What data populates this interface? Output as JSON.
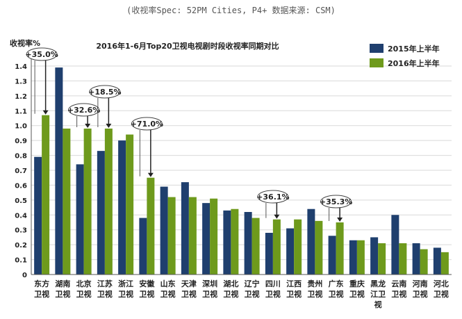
{
  "caption": "(收视率Spec: 52PM Cities, P4+ 数据来源: CSM)",
  "chart_data": {
    "type": "bar",
    "title": "2016年1-6月Top20卫视电视剧时段收视率同期对比",
    "ylabel": "收视率%",
    "xlabel": "",
    "ylim": [
      0,
      1.4
    ],
    "yticks": [
      0,
      0.1,
      0.2,
      0.3,
      0.4,
      0.5,
      0.6,
      0.7,
      0.8,
      0.9,
      1.0,
      1.1,
      1.2,
      1.3,
      1.4
    ],
    "ytick_labels": [
      "0",
      "0.1",
      "0.2",
      "0.3",
      "0.4",
      "0.5",
      "0.6",
      "0.7",
      "0.8",
      "0.9",
      "1.0",
      "1.1",
      "1.2",
      "1.3",
      "1.4"
    ],
    "legend_position": "top-right",
    "categories": [
      [
        "东方",
        "卫视"
      ],
      [
        "湖南",
        "卫视"
      ],
      [
        "北京",
        "卫视"
      ],
      [
        "江苏",
        "卫视"
      ],
      [
        "浙江",
        "卫视"
      ],
      [
        "安徽",
        "卫视"
      ],
      [
        "山东",
        "卫视"
      ],
      [
        "天津",
        "卫视"
      ],
      [
        "深圳",
        "卫视"
      ],
      [
        "湖北",
        "卫视"
      ],
      [
        "辽宁",
        "卫视"
      ],
      [
        "四川",
        "卫视"
      ],
      [
        "江西",
        "卫视"
      ],
      [
        "贵州",
        "卫视"
      ],
      [
        "广东",
        "卫视"
      ],
      [
        "重庆",
        "卫视"
      ],
      [
        "黑龙",
        "江卫",
        "视"
      ],
      [
        "云南",
        "卫视"
      ],
      [
        "河南",
        "卫视"
      ],
      [
        "河北",
        "卫视"
      ]
    ],
    "series": [
      {
        "name": "2015年上半年",
        "color": "#1f3f6e",
        "values": [
          0.79,
          1.39,
          0.74,
          0.83,
          0.9,
          0.38,
          0.59,
          0.62,
          0.48,
          0.43,
          0.42,
          0.28,
          0.31,
          0.44,
          0.26,
          0.23,
          0.25,
          0.4,
          0.21,
          0.18
        ]
      },
      {
        "name": "2016年上半年",
        "color": "#6e9a1c",
        "values": [
          1.07,
          0.98,
          0.98,
          0.98,
          0.94,
          0.65,
          0.52,
          0.52,
          0.51,
          0.44,
          0.38,
          0.37,
          0.37,
          0.36,
          0.35,
          0.23,
          0.21,
          0.21,
          0.17,
          0.15
        ]
      }
    ],
    "annotations": [
      {
        "text": "+35.0%",
        "category_index": 0
      },
      {
        "text": "+18.5%",
        "category_index": 3
      },
      {
        "text": "+32.6%",
        "category_index": 2
      },
      {
        "text": "+71.0%",
        "category_index": 5
      },
      {
        "text": "+36.1%",
        "category_index": 11
      },
      {
        "text": "+35.3%",
        "category_index": 14
      }
    ]
  }
}
